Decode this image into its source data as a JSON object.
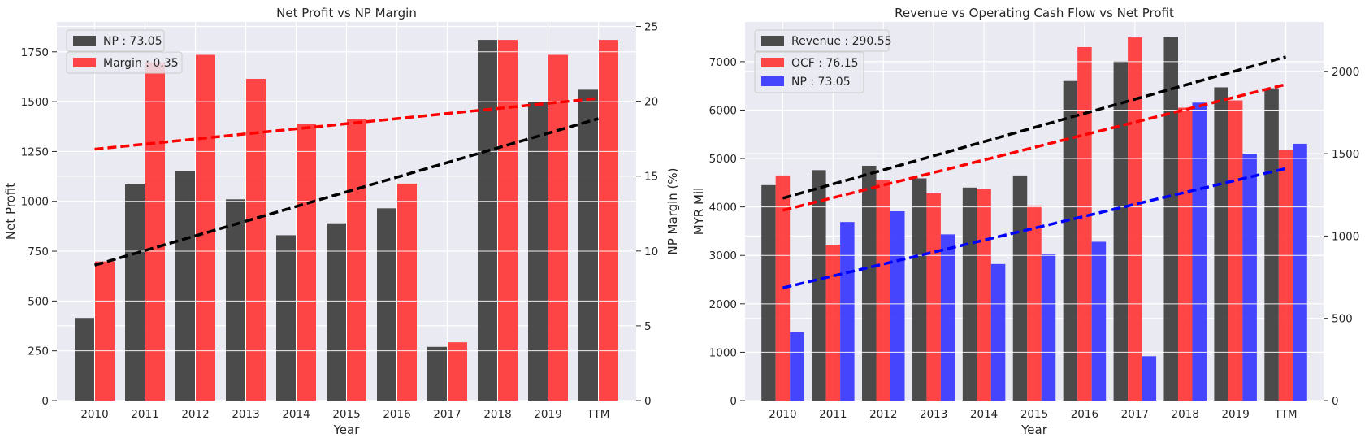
{
  "chart_data": [
    {
      "type": "bar",
      "title": "Net Profit vs NP Margin",
      "xlabel": "Year",
      "ylabel": "Net Profit",
      "y2label": "NP Margin (%)",
      "categories": [
        "2010",
        "2011",
        "2012",
        "2013",
        "2014",
        "2015",
        "2016",
        "2017",
        "2018",
        "2019",
        "TTM"
      ],
      "ylim": [
        0,
        1900
      ],
      "y2lim": [
        0,
        25.3
      ],
      "yticks": [
        0,
        250,
        500,
        750,
        1000,
        1250,
        1500,
        1750
      ],
      "y2ticks": [
        0,
        5,
        10,
        15,
        20,
        25
      ],
      "series": [
        {
          "name": "NP : 73.05",
          "axis": "left",
          "color": "#3a3a3a",
          "values": [
            415,
            1085,
            1150,
            1010,
            830,
            890,
            965,
            270,
            1810,
            1500,
            1560
          ]
        },
        {
          "name": "Margin : 0.35",
          "axis": "right",
          "color": "#ff3333",
          "values": [
            9.3,
            22.6,
            23.1,
            21.5,
            18.5,
            18.8,
            14.5,
            3.9,
            24.1,
            23.1,
            24.1
          ]
        }
      ],
      "trendlines": [
        {
          "axis": "left",
          "color": "#000000",
          "from": [
            0,
            680
          ],
          "to": [
            10,
            1415
          ]
        },
        {
          "axis": "right",
          "color": "#ff0000",
          "from": [
            0,
            16.8
          ],
          "to": [
            10,
            20.2
          ]
        }
      ],
      "legend": "top-left",
      "grid": true
    },
    {
      "type": "bar",
      "title": "Revenue vs Operating Cash Flow vs Net Profit",
      "xlabel": "Year",
      "ylabel": "MYR Mil",
      "y2label": "",
      "categories": [
        "2010",
        "2011",
        "2012",
        "2013",
        "2014",
        "2015",
        "2016",
        "2017",
        "2018",
        "2019",
        "TTM"
      ],
      "ylim": [
        0,
        7820
      ],
      "y2lim": [
        0,
        2300
      ],
      "yticks": [
        0,
        1000,
        2000,
        3000,
        4000,
        5000,
        6000,
        7000
      ],
      "y2ticks": [
        0,
        500,
        1000,
        1500,
        2000
      ],
      "series": [
        {
          "name": "Revenue : 290.55",
          "axis": "left",
          "color": "#3a3a3a",
          "values": [
            4450,
            4760,
            4850,
            4590,
            4400,
            4650,
            6600,
            7010,
            7510,
            6470,
            6450
          ]
        },
        {
          "name": "OCF : 76.15",
          "axis": "left",
          "color": "#ff3333",
          "values": [
            4650,
            3220,
            4560,
            4280,
            4370,
            4030,
            7300,
            7500,
            6050,
            6200,
            5180
          ]
        },
        {
          "name": "NP : 73.05",
          "axis": "right",
          "color": "#3333ff",
          "values": [
            415,
            1085,
            1150,
            1010,
            830,
            890,
            965,
            270,
            1810,
            1500,
            1560
          ]
        }
      ],
      "trendlines": [
        {
          "axis": "left",
          "color": "#000000",
          "from": [
            0,
            4180
          ],
          "to": [
            10,
            7100
          ]
        },
        {
          "axis": "left",
          "color": "#ff0000",
          "from": [
            0,
            3930
          ],
          "to": [
            10,
            6530
          ]
        },
        {
          "axis": "right",
          "color": "#0000ff",
          "from": [
            0,
            685
          ],
          "to": [
            10,
            1410
          ]
        }
      ],
      "legend": "top-left",
      "grid": true
    }
  ]
}
